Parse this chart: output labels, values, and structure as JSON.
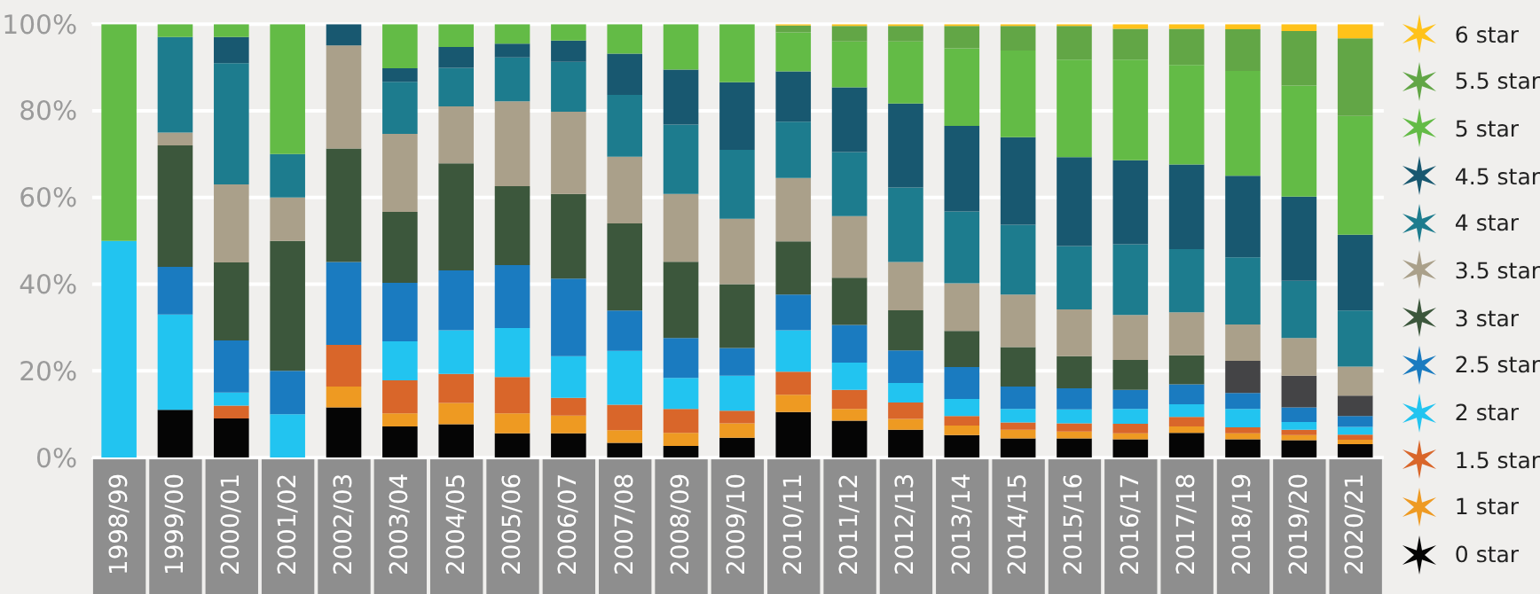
{
  "chart_data": {
    "type": "bar",
    "stacked": true,
    "categories": [
      "1998/99",
      "1999/00",
      "2000/01",
      "2001/02",
      "2002/03",
      "2003/04",
      "2004/05",
      "2005/06",
      "2006/07",
      "2007/08",
      "2008/09",
      "2009/10",
      "2010/11",
      "2011/12",
      "2012/13",
      "2013/14",
      "2014/15",
      "2015/16",
      "2016/17",
      "2017/18",
      "2018/19",
      "2019/20",
      "2020/21"
    ],
    "series": [
      {
        "name": "0 star",
        "color": "#050505",
        "values": [
          null,
          11,
          9,
          null,
          11.6,
          7.2,
          7.7,
          5.6,
          5.6,
          3.4,
          2.7,
          4.6,
          10.5,
          8.5,
          6.4,
          5.2,
          4.4,
          4.4,
          4.2,
          5.7,
          4.2,
          4,
          3.1
        ]
      },
      {
        "name": "1 star",
        "color": "#ee9a22",
        "values": [
          null,
          null,
          null,
          null,
          4.8,
          3,
          4.9,
          4.6,
          4.1,
          2.9,
          3,
          3.3,
          4,
          2.7,
          2.5,
          2.2,
          2,
          1.6,
          1.4,
          1.5,
          1.4,
          1.2,
          1
        ]
      },
      {
        "name": "1.5 star",
        "color": "#d9662a",
        "values": [
          null,
          null,
          3,
          null,
          9.6,
          7.6,
          6.7,
          8.4,
          4.1,
          5.9,
          5.5,
          2.9,
          5.3,
          4.4,
          3.8,
          2.2,
          1.7,
          1.9,
          2.2,
          2.2,
          1.4,
          1.2,
          1.2
        ]
      },
      {
        "name": "2 star",
        "color": "#22c4f0",
        "values": [
          50,
          22,
          3,
          10,
          null,
          9,
          10.1,
          11.3,
          9.6,
          12.4,
          7.2,
          8.1,
          9.6,
          6.3,
          4.5,
          3.9,
          3.1,
          3.2,
          3.4,
          2.9,
          4.2,
          1.8,
          1.8
        ]
      },
      {
        "name": "2.5 star",
        "color": "#1a7bc0",
        "values": [
          null,
          11,
          12,
          10,
          19.1,
          13.5,
          13.8,
          14.5,
          17.9,
          9.3,
          9.2,
          6.4,
          8.2,
          8.7,
          7.5,
          7.4,
          5.2,
          4.9,
          4.4,
          4.6,
          3.7,
          3.4,
          2.5
        ]
      },
      {
        "color": "#444446",
        "values": [
          null,
          null,
          null,
          null,
          null,
          null,
          null,
          null,
          null,
          null,
          null,
          null,
          null,
          null,
          null,
          null,
          null,
          null,
          null,
          null,
          7.4,
          7.3,
          4.7
        ]
      },
      {
        "name": "3 star",
        "color": "#3c573c",
        "values": [
          null,
          28,
          18,
          30,
          26.2,
          16.4,
          24.7,
          18.2,
          19.5,
          20.1,
          17.6,
          14.7,
          12.3,
          10.9,
          9.3,
          8.3,
          9.1,
          7.4,
          6.9,
          6.7,
          null,
          null,
          null
        ]
      },
      {
        "name": "3.5 star",
        "color": "#aaa08a",
        "values": [
          null,
          3,
          18,
          10,
          23.8,
          18,
          13.1,
          19.6,
          19,
          15.4,
          15.6,
          15.1,
          14.6,
          14.2,
          11.1,
          11,
          12.1,
          10.8,
          10.4,
          9.9,
          8.4,
          8.7,
          6.7
        ]
      },
      {
        "name": "4 star",
        "color": "#1d7c8e",
        "values": [
          null,
          22,
          28,
          10,
          null,
          12,
          8.9,
          10.1,
          11.5,
          14.3,
          16,
          15.9,
          13,
          14.8,
          17.2,
          16.6,
          16.1,
          14.6,
          16.3,
          14.6,
          15.5,
          13.2,
          12.9
        ]
      },
      {
        "name": "4.5 star",
        "color": "#185870",
        "values": [
          null,
          null,
          6,
          null,
          4.9,
          3.1,
          4.8,
          3.2,
          4.9,
          9.5,
          12.7,
          15.6,
          11.6,
          14.9,
          19.4,
          19.7,
          20.2,
          20.5,
          19.4,
          19.5,
          18.8,
          19.4,
          17.5
        ]
      },
      {
        "name": "5 star",
        "color": "#63bb46",
        "values": [
          50,
          3,
          3,
          30,
          null,
          10.2,
          5.3,
          4.5,
          3.8,
          6.8,
          10.5,
          13.4,
          9,
          10.6,
          14.3,
          17.9,
          20,
          22.5,
          23.2,
          23,
          24.2,
          25.6,
          27.4
        ]
      },
      {
        "name": "5.5 star",
        "color": "#62a646",
        "values": [
          null,
          null,
          null,
          null,
          null,
          null,
          null,
          null,
          null,
          null,
          null,
          null,
          1.6,
          3.6,
          3.6,
          5.2,
          5.7,
          7.8,
          7.1,
          8.3,
          9.6,
          12.6,
          17.9
        ]
      },
      {
        "name": "6 star",
        "color": "#ffc21a",
        "values": [
          null,
          null,
          null,
          null,
          null,
          null,
          null,
          null,
          null,
          null,
          null,
          null,
          0.3,
          0.4,
          0.4,
          0.4,
          0.4,
          0.4,
          1.1,
          1.1,
          1.2,
          1.6,
          3.3
        ]
      }
    ],
    "ylim": [
      0,
      100
    ],
    "yticks": [
      {
        "value": 0,
        "label": "0%"
      },
      {
        "value": 20,
        "label": "20%"
      },
      {
        "value": 40,
        "label": "40%"
      },
      {
        "value": 60,
        "label": "60%"
      },
      {
        "value": 80,
        "label": "80%"
      },
      {
        "value": 100,
        "label": "100%"
      }
    ],
    "grid": "y",
    "legend": "right"
  }
}
